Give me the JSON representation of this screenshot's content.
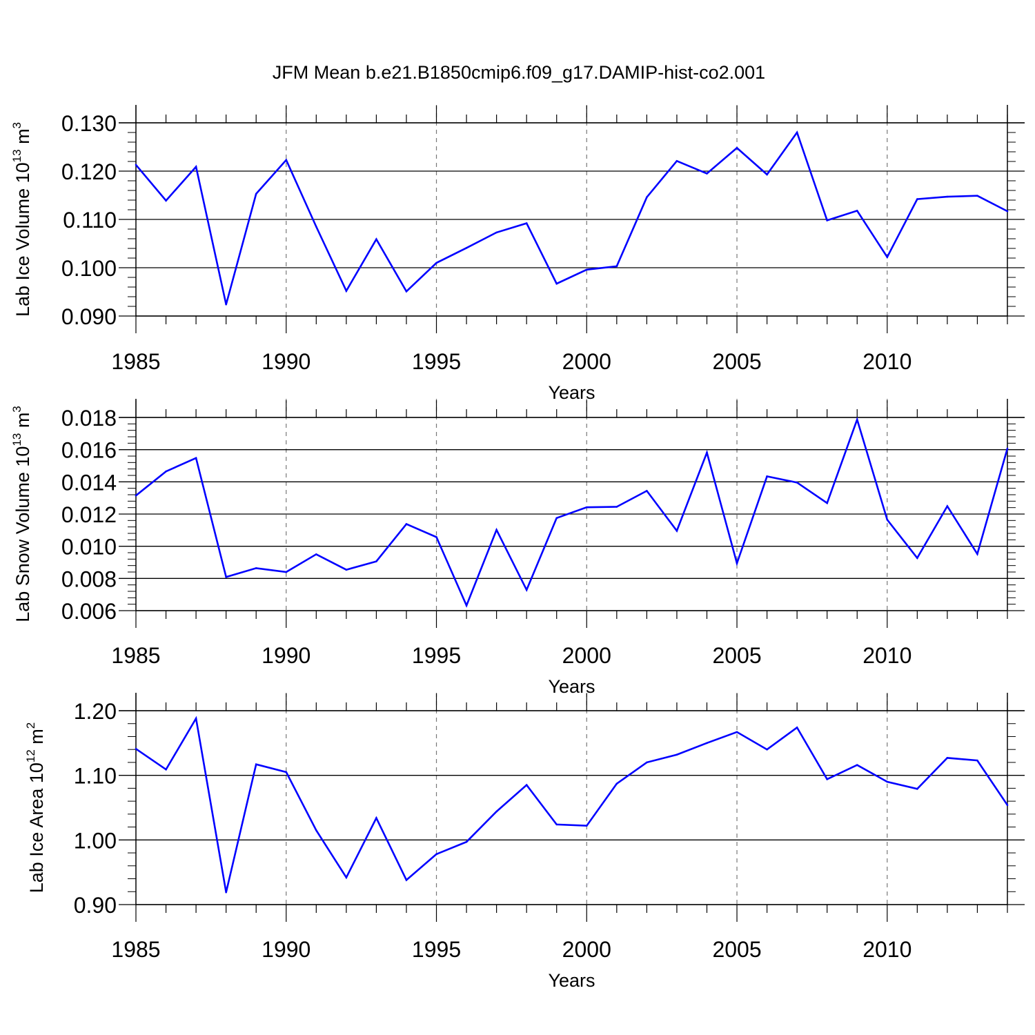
{
  "figure_title": "JFM Mean b.e21.B1850cmip6.f09_g17.DAMIP-hist-co2.001",
  "colors": {
    "line": "#0000ff",
    "axis": "#000000",
    "grid": "#777777"
  },
  "chart_data": [
    {
      "type": "line",
      "title": "JFM Mean b.e21.B1850cmip6.f09_g17.DAMIP-hist-co2.001",
      "xlabel": "Years",
      "ylabel": "Lab Ice Volume 10",
      "ylabel_exp": "13",
      "ylabel_unit": " m",
      "ylabel_unit_exp": "3",
      "xlim": [
        1985,
        2014
      ],
      "ylim": [
        0.09,
        0.13
      ],
      "yticks": [
        0.09,
        0.1,
        0.11,
        0.12,
        0.13
      ],
      "ytick_labels": [
        "0.090",
        "0.100",
        "0.110",
        "0.120",
        "0.130"
      ],
      "xticks": [
        1985,
        1990,
        1995,
        2000,
        2005,
        2010
      ],
      "xtick_labels": [
        "1985",
        "1990",
        "1995",
        "2000",
        "2005",
        "2010"
      ],
      "grid": "vertical dashed at major x ticks",
      "x": [
        1985,
        1986,
        1987,
        1988,
        1989,
        1990,
        1991,
        1992,
        1993,
        1994,
        1995,
        1996,
        1997,
        1998,
        1999,
        2000,
        2001,
        2002,
        2003,
        2004,
        2005,
        2006,
        2007,
        2008,
        2009,
        2010,
        2011,
        2012,
        2013,
        2014
      ],
      "values": [
        0.1213,
        0.1139,
        0.1209,
        0.0924,
        0.1153,
        0.1223,
        0.1085,
        0.0952,
        0.1059,
        0.0951,
        0.101,
        0.1041,
        0.1073,
        0.1092,
        0.0967,
        0.0996,
        0.1003,
        0.1146,
        0.1221,
        0.1195,
        0.1248,
        0.1193,
        0.128,
        0.1098,
        0.1118,
        0.1022,
        0.1142,
        0.1147,
        0.1149,
        0.1117
      ]
    },
    {
      "type": "line",
      "xlabel": "Years",
      "ylabel": "Lab Snow Volume 10",
      "ylabel_exp": "13",
      "ylabel_unit": " m",
      "ylabel_unit_exp": "3",
      "xlim": [
        1985,
        2014
      ],
      "ylim": [
        0.006,
        0.018
      ],
      "yticks": [
        0.006,
        0.008,
        0.01,
        0.012,
        0.014,
        0.016,
        0.018
      ],
      "ytick_labels": [
        "0.006",
        "0.008",
        "0.010",
        "0.012",
        "0.014",
        "0.016",
        "0.018"
      ],
      "xticks": [
        1985,
        1990,
        1995,
        2000,
        2005,
        2010
      ],
      "xtick_labels": [
        "1985",
        "1990",
        "1995",
        "2000",
        "2005",
        "2010"
      ],
      "grid": "vertical dashed at major x ticks",
      "x": [
        1985,
        1986,
        1987,
        1988,
        1989,
        1990,
        1991,
        1992,
        1993,
        1994,
        1995,
        1996,
        1997,
        1998,
        1999,
        2000,
        2001,
        2002,
        2003,
        2004,
        2005,
        2006,
        2007,
        2008,
        2009,
        2010,
        2011,
        2012,
        2013,
        2014
      ],
      "values": [
        0.01315,
        0.01465,
        0.01548,
        0.00809,
        0.00864,
        0.0084,
        0.0095,
        0.00854,
        0.00906,
        0.01138,
        0.01057,
        0.00632,
        0.01102,
        0.00729,
        0.01175,
        0.01242,
        0.01245,
        0.01344,
        0.01096,
        0.01582,
        0.00894,
        0.01434,
        0.01396,
        0.01268,
        0.01787,
        0.01165,
        0.00927,
        0.01249,
        0.00952,
        0.01607
      ]
    },
    {
      "type": "line",
      "xlabel": "Years",
      "ylabel": "Lab Ice Area 10",
      "ylabel_exp": "12",
      "ylabel_unit": " m",
      "ylabel_unit_exp": "2",
      "xlim": [
        1985,
        2014
      ],
      "ylim": [
        0.9,
        1.2
      ],
      "yticks": [
        0.9,
        1.0,
        1.1,
        1.2
      ],
      "ytick_labels": [
        "0.90",
        "1.00",
        "1.10",
        "1.20"
      ],
      "xticks": [
        1985,
        1990,
        1995,
        2000,
        2005,
        2010
      ],
      "xtick_labels": [
        "1985",
        "1990",
        "1995",
        "2000",
        "2005",
        "2010"
      ],
      "grid": "vertical dashed at major x ticks",
      "x": [
        1985,
        1986,
        1987,
        1988,
        1989,
        1990,
        1991,
        1992,
        1993,
        1994,
        1995,
        1996,
        1997,
        1998,
        1999,
        2000,
        2001,
        2002,
        2003,
        2004,
        2005,
        2006,
        2007,
        2008,
        2009,
        2010,
        2011,
        2012,
        2013,
        2014
      ],
      "values": [
        1.141,
        1.109,
        1.188,
        0.919,
        1.117,
        1.105,
        1.015,
        0.942,
        1.034,
        0.938,
        0.978,
        0.997,
        1.044,
        1.085,
        1.024,
        1.022,
        1.087,
        1.12,
        1.132,
        1.15,
        1.167,
        1.14,
        1.174,
        1.094,
        1.116,
        1.09,
        1.079,
        1.127,
        1.123,
        1.054
      ]
    }
  ]
}
